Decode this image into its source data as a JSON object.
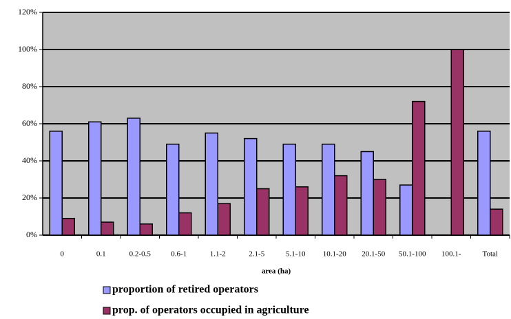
{
  "chart_data": {
    "type": "bar",
    "x_label": "area (ha)",
    "categories": [
      "0",
      "0.1",
      "0.2-0.5",
      "0.6-1",
      "1.1-2",
      "2.1-5",
      "5.1-10",
      "10.1-20",
      "20.1-50",
      "50.1-100",
      "100.1-",
      "Total"
    ],
    "series": [
      {
        "name": "proportion of retired operators",
        "color": "#9999ff",
        "values": [
          56,
          61,
          63,
          49,
          55,
          52,
          49,
          49,
          45,
          27,
          0,
          56
        ]
      },
      {
        "name": "prop. of operators occupied in agriculture",
        "color": "#993366",
        "values": [
          9,
          7,
          6,
          12,
          17,
          25,
          26,
          32,
          30,
          72,
          100,
          14
        ]
      }
    ],
    "ylim": [
      0,
      120
    ],
    "yticks": [
      {
        "value": 0,
        "label": "0%"
      },
      {
        "value": 20,
        "label": "20%"
      },
      {
        "value": 40,
        "label": "40%"
      },
      {
        "value": 60,
        "label": "60%"
      },
      {
        "value": 80,
        "label": "80%"
      },
      {
        "value": 100,
        "label": "100%"
      },
      {
        "value": 120,
        "label": "120%"
      }
    ],
    "grid": true,
    "background": "#c0c0c0"
  }
}
